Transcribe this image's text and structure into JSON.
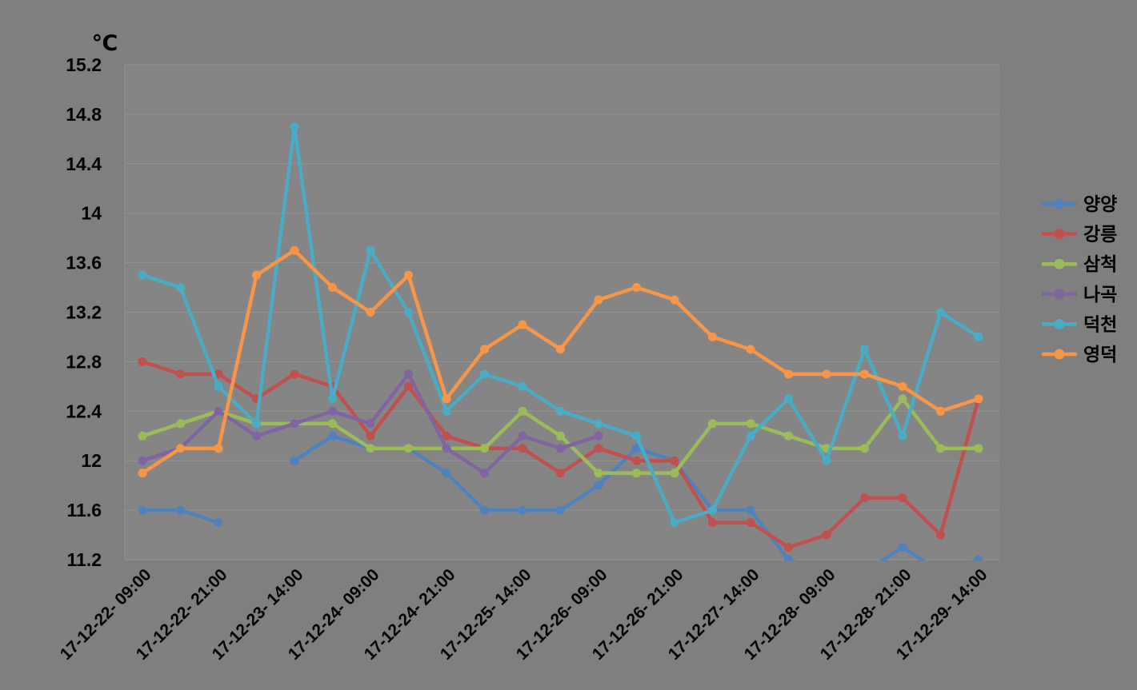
{
  "chart_data": {
    "type": "line",
    "title": "℃",
    "unit": "℃",
    "tick_labels": [
      "17-12-22- 09:00",
      "17-12-22- 21:00",
      "17-12-23- 14:00",
      "17-12-24- 09:00",
      "17-12-24- 21:00",
      "17-12-25- 14:00",
      "17-12-26- 09:00",
      "17-12-26- 21:00",
      "17-12-27- 14:00",
      "17-12-28- 09:00",
      "17-12-28- 21:00",
      "17-12-29- 14:00"
    ],
    "label_every": 2,
    "num_points": 23,
    "ylim": [
      11.2,
      15.2
    ],
    "ytick_step": 0.4,
    "ytick_labels": [
      "15.2",
      "14.8",
      "14.4",
      "14",
      "13.6",
      "13.2",
      "12.8",
      "12.4",
      "12",
      "11.6",
      "11.2"
    ],
    "grid": true,
    "legend_position": "right",
    "background": "#7f7f7f",
    "plot_background": "#858585",
    "gridline_color": "#949494",
    "series": [
      {
        "name": "양양",
        "key": "yangyang",
        "color": "#4F81BD",
        "values": [
          11.6,
          11.6,
          11.5,
          null,
          12.0,
          12.2,
          12.1,
          12.1,
          11.9,
          11.6,
          11.6,
          11.6,
          11.8,
          12.1,
          12.0,
          11.6,
          11.6,
          11.2,
          11.1,
          11.1,
          11.3,
          11.1,
          11.2
        ]
      },
      {
        "name": "강릉",
        "key": "gangneung",
        "color": "#C0504D",
        "values": [
          12.8,
          12.7,
          12.7,
          12.5,
          12.7,
          12.6,
          12.2,
          12.6,
          12.2,
          12.1,
          12.1,
          11.9,
          12.1,
          12.0,
          12.0,
          11.5,
          11.5,
          11.3,
          11.4,
          11.7,
          11.7,
          11.4,
          12.5
        ]
      },
      {
        "name": "삼척",
        "key": "samcheok",
        "color": "#9BBB59",
        "values": [
          12.2,
          12.3,
          12.4,
          12.3,
          12.3,
          12.3,
          12.1,
          12.1,
          12.1,
          12.1,
          12.4,
          12.2,
          11.9,
          11.9,
          11.9,
          12.3,
          12.3,
          12.2,
          12.1,
          12.1,
          12.5,
          12.1,
          12.1
        ]
      },
      {
        "name": "나곡",
        "key": "nagok",
        "color": "#8064A2",
        "values": [
          12.0,
          12.1,
          12.4,
          12.2,
          12.3,
          12.4,
          12.3,
          12.7,
          12.1,
          11.9,
          12.2,
          12.1,
          12.2,
          null,
          null,
          null,
          null,
          null,
          null,
          null,
          null,
          null,
          null
        ]
      },
      {
        "name": "덕천",
        "key": "deokcheon",
        "color": "#4BACC6",
        "values": [
          13.5,
          13.4,
          12.6,
          12.3,
          14.7,
          12.5,
          13.7,
          13.2,
          12.4,
          12.7,
          12.6,
          12.4,
          12.3,
          12.2,
          11.5,
          11.6,
          12.2,
          12.5,
          12.0,
          12.9,
          12.2,
          13.2,
          13.0
        ]
      },
      {
        "name": "영덕",
        "key": "yeongdeok",
        "color": "#F79646",
        "values": [
          11.9,
          12.1,
          12.1,
          13.5,
          13.7,
          13.4,
          13.2,
          13.5,
          12.5,
          12.9,
          13.1,
          12.9,
          13.3,
          13.4,
          13.3,
          13.0,
          12.9,
          12.7,
          12.7,
          12.7,
          12.6,
          12.4,
          12.5
        ]
      }
    ]
  }
}
